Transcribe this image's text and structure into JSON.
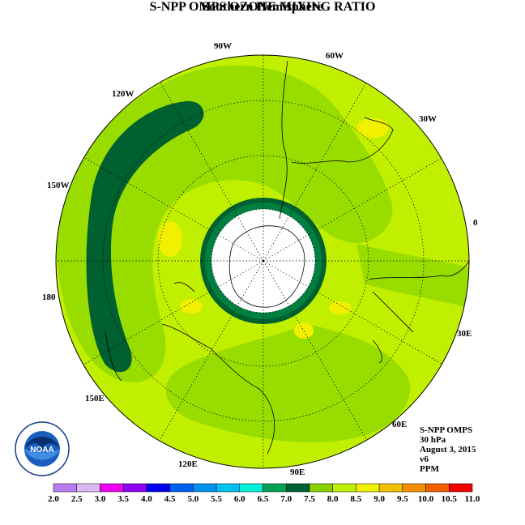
{
  "header": {
    "title": "S-NPP OMPS OZONE MIXING RATIO",
    "subtitle": "Southern Hemisphere"
  },
  "map": {
    "projection": "south-polar-stereographic",
    "longitude_labels": [
      {
        "text": "0",
        "lon": 0
      },
      {
        "text": "30E",
        "lon": 30
      },
      {
        "text": "60E",
        "lon": 60
      },
      {
        "text": "90E",
        "lon": 90
      },
      {
        "text": "120E",
        "lon": 120
      },
      {
        "text": "150E",
        "lon": 150
      },
      {
        "text": "180",
        "lon": 180
      },
      {
        "text": "150W",
        "lon": -150
      },
      {
        "text": "120W",
        "lon": -120
      },
      {
        "text": "90W",
        "lon": -90
      },
      {
        "text": "60W",
        "lon": -60
      },
      {
        "text": "30W",
        "lon": -30
      }
    ],
    "graticule": "dotted",
    "missing_data_region": "polar night (white)"
  },
  "info": {
    "instrument": "S-NPP OMPS",
    "level": "30 hPa",
    "date": "August 3, 2015",
    "version": "v6",
    "units": "PPM"
  },
  "logo": {
    "text": "NOAA",
    "icon": "noaa-logo-icon"
  },
  "colorbar": {
    "ticks": [
      "2.0",
      "2.5",
      "3.0",
      "3.5",
      "4.0",
      "4.5",
      "5.0",
      "5.5",
      "6.0",
      "6.5",
      "7.0",
      "7.5",
      "8.0",
      "8.5",
      "9.0",
      "9.5",
      "10.0",
      "10.5",
      "11.0"
    ],
    "colors": [
      "#b87cf0",
      "#d8b8f0",
      "#f000f0",
      "#9000f0",
      "#0000f0",
      "#0060f0",
      "#0090f0",
      "#00c0f0",
      "#00f0d8",
      "#00a050",
      "#006030",
      "#88d000",
      "#c0f000",
      "#f0f000",
      "#f0c000",
      "#f09000",
      "#f06000",
      "#f00000",
      "#906040"
    ]
  }
}
